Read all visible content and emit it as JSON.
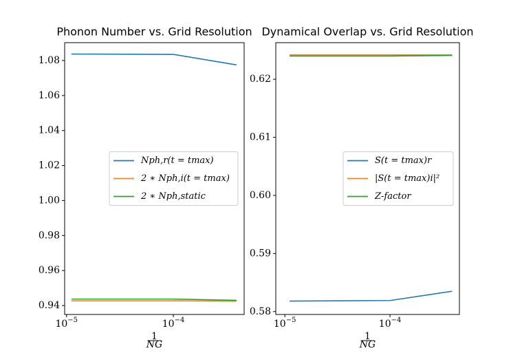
{
  "chart_data": [
    {
      "type": "line",
      "title": "Phonon Number vs. Grid Resolution",
      "x_label": {
        "numerator": "1",
        "denominator": "NG"
      },
      "x": [
        1.11e-05,
        0.0001,
        0.00039
      ],
      "xscale": "log",
      "xlim": [
        9.6e-06,
        0.00046
      ],
      "xticks": [
        {
          "value": 1e-05,
          "label": "10",
          "exponent": "−5"
        },
        {
          "value": 0.0001,
          "label": "10",
          "exponent": "−4"
        }
      ],
      "ylim": [
        0.9349,
        1.0902
      ],
      "yticks": [
        {
          "value": 0.94,
          "label": "0.94"
        },
        {
          "value": 0.96,
          "label": "0.96"
        },
        {
          "value": 0.98,
          "label": "0.98"
        },
        {
          "value": 1.0,
          "label": "1.00"
        },
        {
          "value": 1.02,
          "label": "1.02"
        },
        {
          "value": 1.04,
          "label": "1.04"
        },
        {
          "value": 1.06,
          "label": "1.06"
        },
        {
          "value": 1.08,
          "label": "1.08"
        }
      ],
      "legend": "center right",
      "series": [
        {
          "name": "Nph,r(t = tmax)",
          "color": "#1f77b4",
          "values": [
            1.0837,
            1.0835,
            1.0775
          ]
        },
        {
          "name": "2 ∗ Nph,i(t = tmax)",
          "color": "#ff7f0e",
          "values": [
            0.9427,
            0.9427,
            0.9425
          ]
        },
        {
          "name": "2 ∗ Nph,static",
          "color": "#2ca02c",
          "values": [
            0.9437,
            0.9437,
            0.943
          ]
        }
      ]
    },
    {
      "type": "line",
      "title": "Dynamical Overlap vs. Grid Resolution",
      "x_label": {
        "numerator": "1",
        "denominator": "NG"
      },
      "x": [
        1.11e-05,
        0.0001,
        0.00039
      ],
      "xscale": "log",
      "xlim": [
        8.2e-06,
        0.000457
      ],
      "xticks": [
        {
          "value": 1e-05,
          "label": "10",
          "exponent": "−5"
        },
        {
          "value": 0.0001,
          "label": "10",
          "exponent": "−4"
        }
      ],
      "ylim": [
        0.5795,
        0.6263
      ],
      "yticks": [
        0.58,
        0.59,
        {
          "value": 0.6,
          "label": "0.60"
        },
        0.61,
        0.62
      ],
      "legend": "center right",
      "series": [
        {
          "name": "S(t = tmax)r",
          "color": "#1f77b4",
          "values": [
            0.5818,
            0.5819,
            0.5835
          ]
        },
        {
          "name": "|S(t = tmax)i|²",
          "color": "#ff7f0e",
          "values": [
            0.6242,
            0.6242,
            0.6242
          ]
        },
        {
          "name": "Z-factor",
          "color": "#2ca02c",
          "values": [
            0.624,
            0.624,
            0.6241
          ]
        }
      ]
    }
  ]
}
